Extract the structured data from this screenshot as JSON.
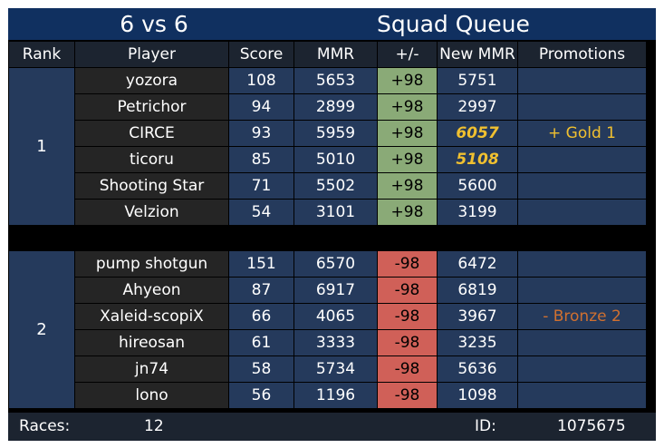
{
  "header": {
    "format": "6 vs 6",
    "mode": "Squad Queue"
  },
  "columns": [
    "Rank",
    "Player",
    "Score",
    "MMR",
    "+/-",
    "New MMR",
    "Promotions"
  ],
  "teams": [
    {
      "rank": "1",
      "delta": "+98",
      "promotion": "+ Gold 1",
      "players": [
        {
          "name": "yozora",
          "score": "108",
          "mmr": "5653",
          "new_mmr": "5751",
          "highlight": false
        },
        {
          "name": "Petrichor",
          "score": "94",
          "mmr": "2899",
          "new_mmr": "2997",
          "highlight": false
        },
        {
          "name": "CIRCE",
          "score": "93",
          "mmr": "5959",
          "new_mmr": "6057",
          "highlight": true
        },
        {
          "name": "ticoru",
          "score": "85",
          "mmr": "5010",
          "new_mmr": "5108",
          "highlight": true
        },
        {
          "name": "Shooting Star",
          "score": "71",
          "mmr": "5502",
          "new_mmr": "5600",
          "highlight": false
        },
        {
          "name": "Velzion",
          "score": "54",
          "mmr": "3101",
          "new_mmr": "3199",
          "highlight": false
        }
      ]
    },
    {
      "rank": "2",
      "delta": "-98",
      "promotion": "- Bronze 2",
      "players": [
        {
          "name": "pump shotgun",
          "score": "151",
          "mmr": "6570",
          "new_mmr": "6472",
          "highlight": false
        },
        {
          "name": "Ahyeon",
          "score": "87",
          "mmr": "6917",
          "new_mmr": "6819",
          "highlight": false
        },
        {
          "name": "Xaleid-scopiX",
          "score": "66",
          "mmr": "4065",
          "new_mmr": "3967",
          "highlight": false
        },
        {
          "name": "hireosan",
          "score": "61",
          "mmr": "3333",
          "new_mmr": "3235",
          "highlight": false
        },
        {
          "name": "jn74",
          "score": "58",
          "mmr": "5734",
          "new_mmr": "5636",
          "highlight": false
        },
        {
          "name": "lono",
          "score": "56",
          "mmr": "1196",
          "new_mmr": "1098",
          "highlight": false
        }
      ]
    }
  ],
  "footer": {
    "races_label": "Races:",
    "races_value": "12",
    "id_label": "ID:",
    "id_value": "1075675"
  },
  "colors": {
    "title_bg": "#103060",
    "header_bg": "#1c2430",
    "row_blue": "#253a5c",
    "player_bg": "#252525",
    "gain": "#8aaa77",
    "loss": "#d06058",
    "gold": "#f0c030",
    "bronze": "#d07030"
  }
}
